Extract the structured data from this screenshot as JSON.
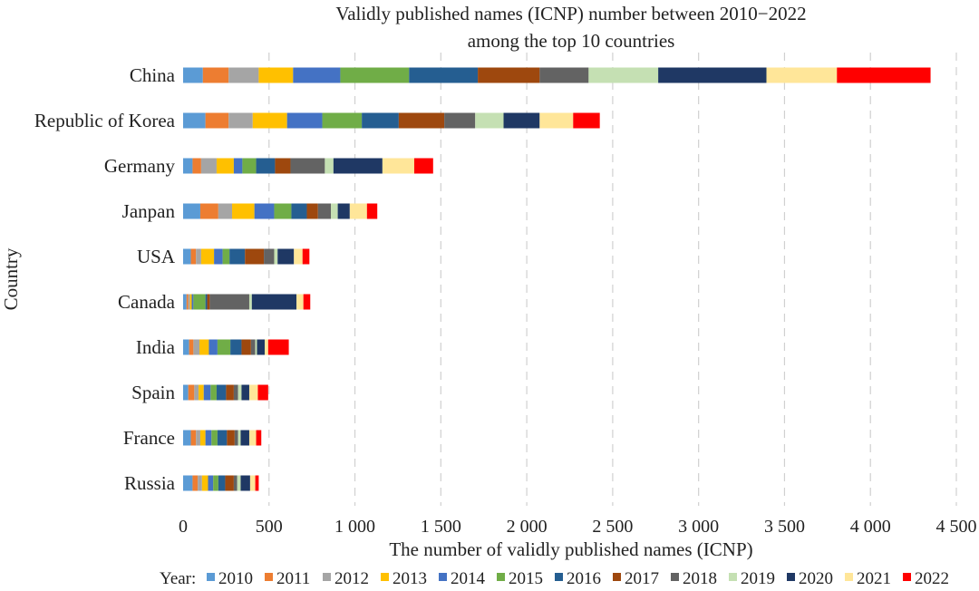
{
  "chart_data": {
    "type": "bar",
    "orientation": "horizontal",
    "stacked": true,
    "title_line1": "Validly published names (ICNP) number between 2010−2022",
    "title_line2": "among the top 10 countries",
    "xlabel": "The number of validly published names (ICNP)",
    "ylabel": "Country",
    "xlim": [
      0,
      4500
    ],
    "xticks": [
      0,
      500,
      1000,
      1500,
      2000,
      2500,
      3000,
      3500,
      4000,
      4500
    ],
    "xtick_labels": [
      "0",
      "500",
      "1 000",
      "1 500",
      "2 000",
      "2 500",
      "3 000",
      "3 500",
      "4 000",
      "4 500"
    ],
    "grid": "vertical dashed",
    "legend_title": "Year:",
    "legend_position": "bottom",
    "categories": [
      "China",
      "Republic of Korea",
      "Germany",
      "Janpan",
      "USA",
      "Canada",
      "India",
      "Spain",
      "France",
      "Russia"
    ],
    "series": [
      {
        "name": "2010",
        "color": "#5B9BD5",
        "values": [
          115,
          130,
          55,
          100,
          45,
          20,
          35,
          30,
          45,
          55
        ]
      },
      {
        "name": "2011",
        "color": "#ED7D31",
        "values": [
          150,
          135,
          50,
          105,
          30,
          10,
          25,
          35,
          30,
          30
        ]
      },
      {
        "name": "2012",
        "color": "#A5A5A5",
        "values": [
          175,
          140,
          90,
          80,
          30,
          10,
          35,
          25,
          25,
          25
        ]
      },
      {
        "name": "2013",
        "color": "#FFC000",
        "values": [
          200,
          200,
          100,
          130,
          75,
          10,
          55,
          30,
          30,
          35
        ]
      },
      {
        "name": "2014",
        "color": "#4472C4",
        "values": [
          275,
          205,
          50,
          115,
          50,
          10,
          50,
          40,
          35,
          30
        ]
      },
      {
        "name": "2015",
        "color": "#70AD47",
        "values": [
          400,
          230,
          80,
          100,
          40,
          70,
          75,
          35,
          35,
          30
        ]
      },
      {
        "name": "2016",
        "color": "#255E91",
        "values": [
          400,
          215,
          110,
          90,
          90,
          10,
          65,
          55,
          55,
          40
        ]
      },
      {
        "name": "2017",
        "color": "#9E480E",
        "values": [
          360,
          265,
          90,
          65,
          110,
          15,
          55,
          45,
          45,
          50
        ]
      },
      {
        "name": "2018",
        "color": "#636363",
        "values": [
          285,
          180,
          200,
          75,
          60,
          230,
          25,
          25,
          20,
          20
        ]
      },
      {
        "name": "2019",
        "color": "#C5E0B3",
        "values": [
          405,
          165,
          50,
          40,
          20,
          15,
          10,
          20,
          15,
          20
        ]
      },
      {
        "name": "2020",
        "color": "#1F3864",
        "values": [
          630,
          210,
          285,
          70,
          95,
          260,
          45,
          45,
          50,
          55
        ]
      },
      {
        "name": "2021",
        "color": "#FFE699",
        "values": [
          410,
          195,
          185,
          100,
          50,
          40,
          20,
          50,
          40,
          30
        ]
      },
      {
        "name": "2022",
        "color": "#FF0000",
        "values": [
          545,
          155,
          110,
          60,
          40,
          40,
          120,
          60,
          30,
          20
        ]
      }
    ]
  }
}
